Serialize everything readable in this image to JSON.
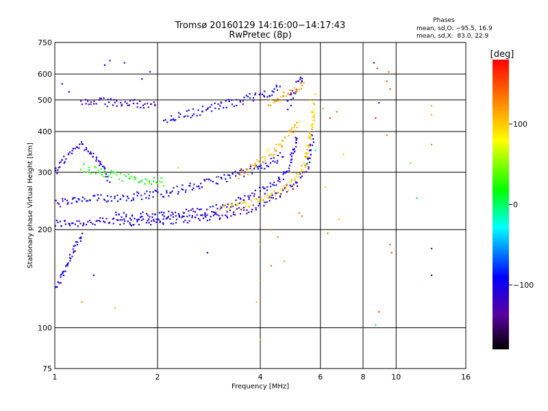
{
  "chart_data": {
    "type": "scatter",
    "title": "Tromsø 20160129 14:16:00−14:17:43",
    "subtitle": "RwPretec (8p)",
    "xlabel": "Frequency [MHz]",
    "ylabel": "Stationary phase Virtual Height [km]",
    "x_scale": "log",
    "y_scale": "log",
    "xlim": [
      1,
      16
    ],
    "ylim": [
      75,
      750
    ],
    "x_ticks": [
      1,
      2,
      4,
      6,
      8,
      10,
      16
    ],
    "x_ticklabels": [
      "1",
      "2",
      "4",
      "6",
      "8",
      "10",
      "16"
    ],
    "y_ticks": [
      75,
      100,
      200,
      300,
      400,
      500,
      600,
      750
    ],
    "y_ticklabels": [
      "75",
      "100",
      "200",
      "300",
      "400",
      "500",
      "600",
      "750"
    ],
    "grid": true,
    "colorbar": {
      "label": "[deg]",
      "range": [
        -180,
        180
      ],
      "ticks": [
        -100,
        0,
        100
      ],
      "ticklabels": [
        "−100",
        "0",
        "100"
      ]
    },
    "stats": {
      "heading": "Phases",
      "line_o": "mean, sd,O: −95.5, 16.9",
      "line_x": "mean, sd,X:  83.0, 22.9"
    },
    "traces": [
      {
        "name": "",
        "phase": -110,
        "x": [
          1.0,
          1.03,
          1.06,
          1.1,
          1.14,
          1.18,
          1.25,
          1.35,
          1.5,
          1.7,
          1.9,
          2.1,
          2.3,
          2.5,
          2.7,
          2.9,
          3.1,
          3.3,
          3.5,
          3.7,
          3.9,
          4.1,
          4.3,
          4.5,
          4.7,
          4.9,
          5.1,
          5.3,
          5.5,
          5.6,
          5.7
        ],
        "y": [
          208,
          209,
          209,
          210,
          210,
          210,
          211,
          211,
          212,
          212,
          213,
          214,
          215,
          216,
          218,
          220,
          222,
          225,
          228,
          232,
          236,
          242,
          248,
          255,
          262,
          270,
          280,
          295,
          315,
          345,
          390
        ]
      },
      {
        "name": "",
        "phase": -105,
        "x": [
          1.5,
          1.7,
          1.9,
          2.1,
          2.3,
          2.5,
          2.7,
          2.9,
          3.1,
          3.3,
          3.5,
          3.7,
          3.9,
          4.1,
          4.3,
          4.5,
          4.7,
          4.9,
          5.0,
          5.1
        ],
        "y": [
          220,
          220,
          221,
          222,
          224,
          226,
          228,
          231,
          235,
          240,
          246,
          252,
          258,
          265,
          272,
          282,
          295,
          318,
          345,
          390
        ]
      },
      {
        "name": "",
        "phase": -100,
        "x": [
          1.0,
          1.05,
          1.1,
          1.2,
          1.3,
          1.4,
          1.6,
          1.8,
          2.0,
          2.2,
          2.5,
          2.8,
          3.0,
          3.3,
          3.6,
          3.9,
          4.2,
          4.5,
          4.7
        ],
        "y": [
          240,
          242,
          244,
          246,
          248,
          250,
          252,
          255,
          258,
          262,
          270,
          278,
          285,
          292,
          300,
          308,
          318,
          330,
          345
        ]
      },
      {
        "name": "",
        "phase": -100,
        "x": [
          2.1,
          2.3,
          2.5,
          2.7,
          2.9,
          3.1,
          3.3,
          3.5,
          3.7,
          3.9,
          4.1,
          4.3,
          4.5,
          4.6
        ],
        "y": [
          435,
          445,
          455,
          465,
          474,
          482,
          490,
          498,
          506,
          514,
          522,
          530,
          538,
          545
        ]
      },
      {
        "name": "",
        "phase": -115,
        "x": [
          1.2,
          1.3,
          1.4,
          1.5,
          1.6,
          1.7,
          1.8,
          1.9,
          2.0
        ],
        "y": [
          495,
          493,
          492,
          490,
          489,
          488,
          487,
          486,
          485
        ]
      },
      {
        "name": "",
        "phase": -110,
        "x": [
          1.0,
          1.05,
          1.1,
          1.15,
          1.2,
          1.25,
          1.3,
          1.35,
          1.4,
          1.45
        ],
        "y": [
          300,
          320,
          340,
          355,
          365,
          355,
          340,
          320,
          300,
          285
        ]
      },
      {
        "name": "",
        "phase": -105,
        "x": [
          1.0,
          1.03,
          1.05,
          1.08,
          1.1,
          1.12,
          1.15,
          1.18,
          1.2
        ],
        "y": [
          132,
          138,
          145,
          152,
          160,
          168,
          176,
          185,
          195
        ]
      },
      {
        "name": "",
        "phase": -100,
        "x": [
          4.8,
          4.9,
          5.0,
          5.1,
          5.2,
          5.3
        ],
        "y": [
          480,
          500,
          520,
          545,
          570,
          600
        ]
      },
      {
        "name": "",
        "phase": 20,
        "x": [
          1.2,
          1.3,
          1.4,
          1.5,
          1.6,
          1.7,
          1.8,
          1.9,
          2.0,
          2.1
        ],
        "y": [
          310,
          305,
          298,
          292,
          288,
          285,
          283,
          282,
          281,
          280
        ]
      },
      {
        "name": "",
        "phase": 100,
        "x": [
          3.0,
          3.2,
          3.4,
          3.6,
          3.8,
          4.0,
          4.2,
          4.4,
          4.6,
          4.8,
          5.0,
          5.2,
          5.4,
          5.5,
          5.6,
          5.7,
          5.7
        ],
        "y": [
          230,
          232,
          235,
          238,
          242,
          246,
          250,
          255,
          262,
          270,
          280,
          295,
          320,
          350,
          385,
          430,
          490
        ]
      },
      {
        "name": "",
        "phase": 110,
        "x": [
          3.4,
          3.6,
          3.8,
          4.0,
          4.2,
          4.4,
          4.6,
          4.8,
          5.0,
          5.2
        ],
        "y": [
          290,
          300,
          312,
          326,
          338,
          352,
          368,
          385,
          405,
          430
        ]
      },
      {
        "name": "",
        "phase": 120,
        "x": [
          4.2,
          4.4,
          4.6,
          4.8,
          5.0,
          5.2,
          5.4
        ],
        "y": [
          490,
          500,
          510,
          520,
          530,
          545,
          560
        ]
      }
    ],
    "scatter_points": [
      {
        "x": 1.6,
        "y": 650,
        "phase": -120
      },
      {
        "x": 1.9,
        "y": 610,
        "phase": -120
      },
      {
        "x": 1.45,
        "y": 660,
        "phase": -110
      },
      {
        "x": 1.4,
        "y": 640,
        "phase": -90
      },
      {
        "x": 1.2,
        "y": 120,
        "phase": 120
      },
      {
        "x": 1.3,
        "y": 145,
        "phase": -110
      },
      {
        "x": 1.5,
        "y": 115,
        "phase": 110
      },
      {
        "x": 2.8,
        "y": 170,
        "phase": -110
      },
      {
        "x": 2.3,
        "y": 310,
        "phase": 100
      },
      {
        "x": 3.0,
        "y": 290,
        "phase": 100
      },
      {
        "x": 4.0,
        "y": 180,
        "phase": 120
      },
      {
        "x": 4.0,
        "y": 140,
        "phase": 130
      },
      {
        "x": 3.9,
        "y": 120,
        "phase": 100
      },
      {
        "x": 4.0,
        "y": 92,
        "phase": 110
      },
      {
        "x": 4.3,
        "y": 200,
        "phase": 140
      },
      {
        "x": 4.5,
        "y": 190,
        "phase": 130
      },
      {
        "x": 4.3,
        "y": 155,
        "phase": 140
      },
      {
        "x": 4.7,
        "y": 160,
        "phase": 120
      },
      {
        "x": 5.2,
        "y": 225,
        "phase": 130
      },
      {
        "x": 5.3,
        "y": 220,
        "phase": 140
      },
      {
        "x": 5.6,
        "y": 500,
        "phase": 120
      },
      {
        "x": 5.8,
        "y": 520,
        "phase": 100
      },
      {
        "x": 6.4,
        "y": 440,
        "phase": 160
      },
      {
        "x": 6.1,
        "y": 470,
        "phase": 120
      },
      {
        "x": 6.7,
        "y": 460,
        "phase": 140
      },
      {
        "x": 6.2,
        "y": 270,
        "phase": 100
      },
      {
        "x": 6.3,
        "y": 195,
        "phase": 130
      },
      {
        "x": 6.8,
        "y": 215,
        "phase": 110
      },
      {
        "x": 7.0,
        "y": 340,
        "phase": 100
      },
      {
        "x": 8.6,
        "y": 650,
        "phase": -140
      },
      {
        "x": 8.8,
        "y": 625,
        "phase": 150
      },
      {
        "x": 8.9,
        "y": 490,
        "phase": -120
      },
      {
        "x": 8.7,
        "y": 440,
        "phase": 170
      },
      {
        "x": 9.5,
        "y": 610,
        "phase": 140
      },
      {
        "x": 9.4,
        "y": 570,
        "phase": 140
      },
      {
        "x": 9.6,
        "y": 540,
        "phase": 150
      },
      {
        "x": 9.4,
        "y": 390,
        "phase": 130
      },
      {
        "x": 9.6,
        "y": 180,
        "phase": 140
      },
      {
        "x": 9.7,
        "y": 170,
        "phase": 150
      },
      {
        "x": 8.9,
        "y": 112,
        "phase": 160
      },
      {
        "x": 8.7,
        "y": 102,
        "phase": 10
      },
      {
        "x": 11.0,
        "y": 320,
        "phase": 40
      },
      {
        "x": 11.5,
        "y": 250,
        "phase": 10
      },
      {
        "x": 12.7,
        "y": 480,
        "phase": 120
      },
      {
        "x": 12.7,
        "y": 450,
        "phase": 110
      },
      {
        "x": 12.7,
        "y": 365,
        "phase": 130
      },
      {
        "x": 12.7,
        "y": 175,
        "phase": -130
      },
      {
        "x": 12.7,
        "y": 145,
        "phase": -120
      },
      {
        "x": 5.8,
        "y": 350,
        "phase": 0
      },
      {
        "x": 5.5,
        "y": 320,
        "phase": 10
      },
      {
        "x": 4.9,
        "y": 300,
        "phase": 120
      },
      {
        "x": 1.8,
        "y": 580,
        "phase": -115
      },
      {
        "x": 1.1,
        "y": 530,
        "phase": -100
      },
      {
        "x": 1.05,
        "y": 560,
        "phase": -110
      }
    ]
  }
}
